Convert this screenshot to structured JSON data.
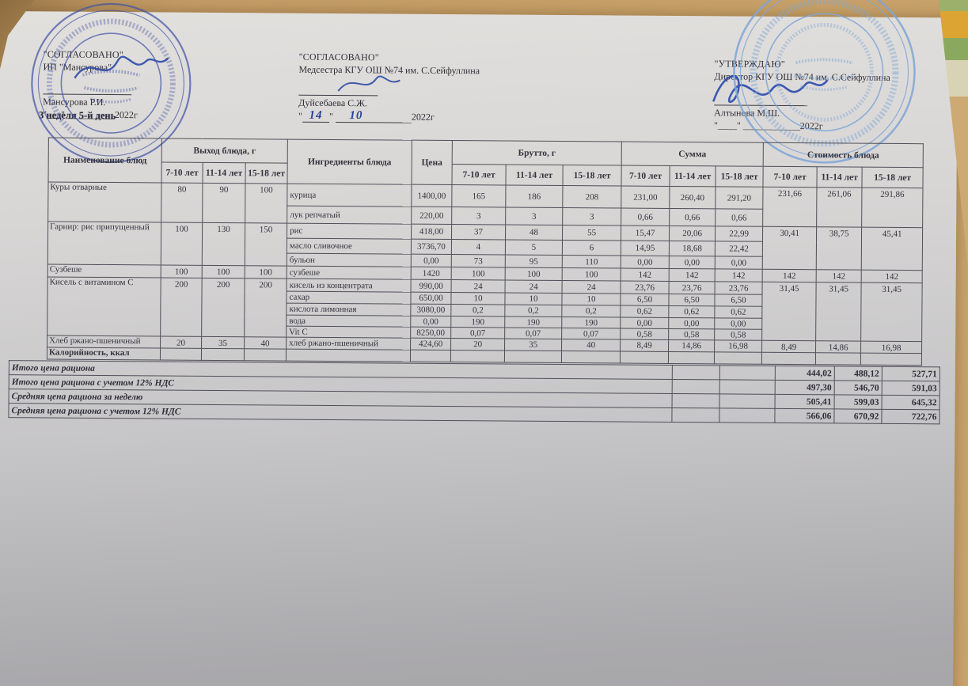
{
  "approvals": {
    "left": {
      "title": "\"СОГЛАСОВАНО\"",
      "org": "ИП \"Мансурова\"",
      "name": "Мансурова Р.И.",
      "date_line": "\"___\" __________2022г",
      "week_note": "3 неделя 5-й день"
    },
    "center": {
      "title": "\"СОГЛАСОВАНО\"",
      "role": "Медсестра КГУ ОШ №74 им. С.Сейфуллина",
      "name": "Дуйсебаева С.Ж.",
      "date_day": "14",
      "date_month": "10",
      "date_year": "2022г"
    },
    "right": {
      "title": "\"УТВЕРЖДАЮ\"",
      "role": "Директор КГУ ОШ №74 им. С.Сейфуллина",
      "name": "Алтынова М.Ш.",
      "date_line": "\"____\" ____________2022г"
    }
  },
  "table": {
    "headers": {
      "dish": "Наименование блюд",
      "output": "Выход блюда, г",
      "ingredients": "Ингредиенты блюда",
      "price": "Цена",
      "brutto": "Брутто, г",
      "sum": "Сумма",
      "cost": "Стоимость блюда",
      "age_groups": [
        "7-10 лет",
        "11-14 лет",
        "15-18 лет"
      ]
    },
    "dishes": [
      {
        "name": "Куры отварные",
        "output": [
          "80",
          "90",
          "100"
        ],
        "cost": [
          "231,66",
          "261,06",
          "291,86"
        ],
        "ingredients": [
          {
            "name": "курица",
            "price": "1400,00",
            "brutto": [
              "165",
              "186",
              "208"
            ],
            "sum": [
              "231,00",
              "260,40",
              "291,20"
            ]
          },
          {
            "name": "лук репчатый",
            "price": "220,00",
            "brutto": [
              "3",
              "3",
              "3"
            ],
            "sum": [
              "0,66",
              "0,66",
              "0,66"
            ]
          }
        ]
      },
      {
        "name": "Гарнир: рис припущенный",
        "output": [
          "100",
          "130",
          "150"
        ],
        "cost": [
          "30,41",
          "38,75",
          "45,41"
        ],
        "ingredients": [
          {
            "name": "рис",
            "price": "418,00",
            "brutto": [
              "37",
              "48",
              "55"
            ],
            "sum": [
              "15,47",
              "20,06",
              "22,99"
            ]
          },
          {
            "name": "масло сливочное",
            "price": "3736,70",
            "brutto": [
              "4",
              "5",
              "6"
            ],
            "sum": [
              "14,95",
              "18,68",
              "22,42"
            ]
          },
          {
            "name": "бульон",
            "price": "0,00",
            "brutto": [
              "73",
              "95",
              "110"
            ],
            "sum": [
              "0,00",
              "0,00",
              "0,00"
            ]
          }
        ]
      },
      {
        "name": "Сузбеше",
        "output": [
          "100",
          "100",
          "100"
        ],
        "cost": [
          "142",
          "142",
          "142"
        ],
        "ingredients": [
          {
            "name": "сузбеше",
            "price": "1420",
            "brutto": [
              "100",
              "100",
              "100"
            ],
            "sum": [
              "142",
              "142",
              "142"
            ]
          }
        ]
      },
      {
        "name": "Кисель с витамином С",
        "output": [
          "200",
          "200",
          "200"
        ],
        "cost": [
          "31,45",
          "31,45",
          "31,45"
        ],
        "ingredients": [
          {
            "name": "кисель из концентрата",
            "price": "990,00",
            "brutto": [
              "24",
              "24",
              "24"
            ],
            "sum": [
              "23,76",
              "23,76",
              "23,76"
            ]
          },
          {
            "name": "сахар",
            "price": "650,00",
            "brutto": [
              "10",
              "10",
              "10"
            ],
            "sum": [
              "6,50",
              "6,50",
              "6,50"
            ]
          },
          {
            "name": "кислота лимонная",
            "price": "3080,00",
            "brutto": [
              "0,2",
              "0,2",
              "0,2"
            ],
            "sum": [
              "0,62",
              "0,62",
              "0,62"
            ]
          },
          {
            "name": "вода",
            "price": "0,00",
            "brutto": [
              "190",
              "190",
              "190"
            ],
            "sum": [
              "0,00",
              "0,00",
              "0,00"
            ]
          },
          {
            "name": "Vit C",
            "price": "8250,00",
            "brutto": [
              "0,07",
              "0,07",
              "0,07"
            ],
            "sum": [
              "0,58",
              "0,58",
              "0,58"
            ]
          }
        ]
      },
      {
        "name": "Хлеб ржано-пшеничный",
        "output": [
          "20",
          "35",
          "40"
        ],
        "cost": [
          "8,49",
          "14,86",
          "16,98"
        ],
        "ingredients": [
          {
            "name": "хлеб ржано-пшеничный",
            "price": "424,60",
            "brutto": [
              "20",
              "35",
              "40"
            ],
            "sum": [
              "8,49",
              "14,86",
              "16,98"
            ]
          }
        ]
      },
      {
        "name": "Калорийность, ккал",
        "output": [
          "",
          "",
          ""
        ],
        "cost": [
          "",
          "",
          ""
        ],
        "ingredients": [
          {
            "name": "",
            "price": "",
            "brutto": [
              "",
              "",
              ""
            ],
            "sum": [
              "",
              "",
              ""
            ]
          }
        ]
      }
    ]
  },
  "summary": {
    "rows": [
      {
        "label": "Итого цена рациона",
        "values": [
          "444,02",
          "488,12",
          "527,71"
        ]
      },
      {
        "label": "Итого цена рациона с учетом 12% НДС",
        "values": [
          "497,30",
          "546,70",
          "591,03"
        ]
      },
      {
        "label": "Средняя цена рациона за неделю",
        "values": [
          "505,41",
          "599,03",
          "645,32"
        ]
      },
      {
        "label": "Средняя цена рациона с учетом 12% НДС",
        "values": [
          "566,06",
          "670,92",
          "722,76"
        ]
      }
    ]
  }
}
